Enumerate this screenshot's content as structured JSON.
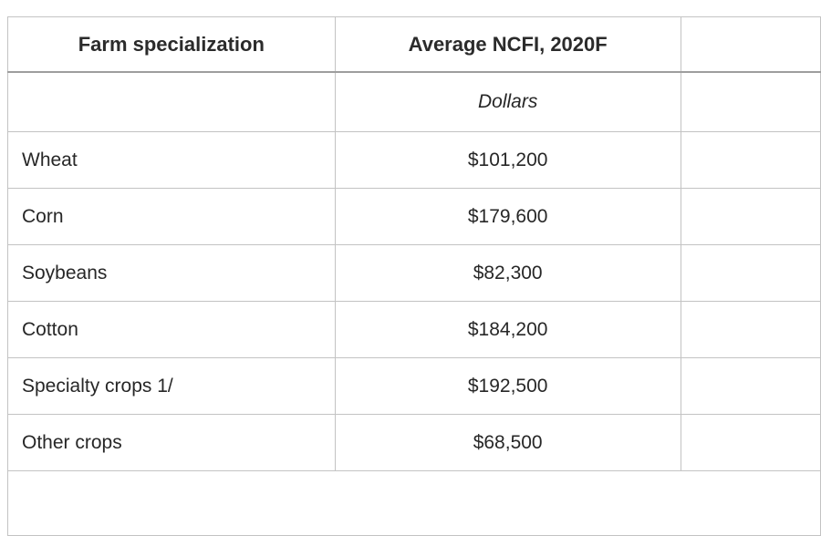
{
  "colors": {
    "border": "#c3c3c3",
    "header_underline": "#9e9e9e",
    "text": "#272727",
    "background": "#ffffff"
  },
  "table": {
    "header": {
      "col1": "Farm specialization",
      "col2": "Average NCFI, 2020F",
      "col3": ""
    },
    "units_row": {
      "col1": "",
      "col2": "Dollars",
      "col3": ""
    },
    "rows": [
      {
        "label": "Wheat",
        "value": "$101,200"
      },
      {
        "label": "Corn",
        "value": "$179,600"
      },
      {
        "label": "Soybeans",
        "value": "$82,300"
      },
      {
        "label": "Cotton",
        "value": "$184,200"
      },
      {
        "label": "Specialty crops 1/",
        "value": "$192,500"
      },
      {
        "label": "Other crops",
        "value": "$68,500"
      }
    ],
    "footnote": ""
  },
  "chart_data": {
    "type": "table",
    "columns": [
      "Farm specialization",
      "Average NCFI, 2020F"
    ],
    "units": "Dollars",
    "categories": [
      "Wheat",
      "Corn",
      "Soybeans",
      "Cotton",
      "Specialty crops 1/",
      "Other crops"
    ],
    "values": [
      101200,
      179600,
      82300,
      184200,
      192500,
      68500
    ]
  }
}
